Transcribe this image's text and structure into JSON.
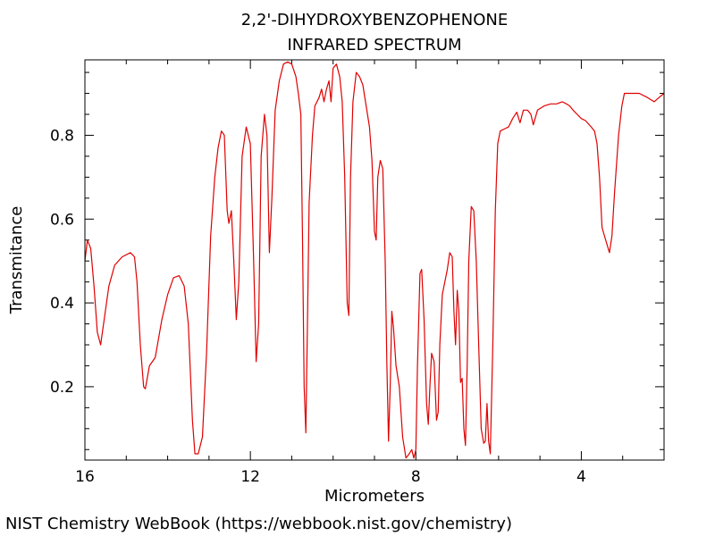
{
  "chart_data": {
    "type": "line",
    "title": [
      "2,2'-DIHYDROXYBENZOPHENONE",
      "INFRARED SPECTRUM"
    ],
    "xlabel": "Micrometers",
    "ylabel": "Transmitance",
    "xlim": [
      16,
      2
    ],
    "ylim": [
      0.025,
      0.98
    ],
    "grid": false,
    "xticks": [
      {
        "value": 16,
        "label": "16"
      },
      {
        "value": 12,
        "label": "12"
      },
      {
        "value": 8,
        "label": "8"
      },
      {
        "value": 4,
        "label": "4"
      }
    ],
    "yticks": [
      {
        "value": 0.2,
        "label": "0.2"
      },
      {
        "value": 0.4,
        "label": "0.4"
      },
      {
        "value": 0.6,
        "label": "0.6"
      },
      {
        "value": 0.8,
        "label": "0.8"
      }
    ],
    "xminor_step": 1,
    "yminor_step": 0.05,
    "series": [
      {
        "color": "#e00000",
        "points": [
          [
            16.0,
            0.5
          ],
          [
            15.94,
            0.55
          ],
          [
            15.86,
            0.53
          ],
          [
            15.78,
            0.44
          ],
          [
            15.7,
            0.33
          ],
          [
            15.62,
            0.3
          ],
          [
            15.52,
            0.37
          ],
          [
            15.42,
            0.44
          ],
          [
            15.28,
            0.49
          ],
          [
            15.1,
            0.51
          ],
          [
            14.9,
            0.52
          ],
          [
            14.8,
            0.51
          ],
          [
            14.74,
            0.45
          ],
          [
            14.66,
            0.3
          ],
          [
            14.58,
            0.2
          ],
          [
            14.54,
            0.195
          ],
          [
            14.44,
            0.25
          ],
          [
            14.3,
            0.27
          ],
          [
            14.14,
            0.36
          ],
          [
            14.0,
            0.42
          ],
          [
            13.86,
            0.46
          ],
          [
            13.72,
            0.465
          ],
          [
            13.6,
            0.44
          ],
          [
            13.5,
            0.35
          ],
          [
            13.4,
            0.12
          ],
          [
            13.34,
            0.04
          ],
          [
            13.26,
            0.04
          ],
          [
            13.16,
            0.08
          ],
          [
            13.06,
            0.28
          ],
          [
            12.96,
            0.56
          ],
          [
            12.86,
            0.7
          ],
          [
            12.78,
            0.77
          ],
          [
            12.7,
            0.81
          ],
          [
            12.63,
            0.8
          ],
          [
            12.56,
            0.62
          ],
          [
            12.52,
            0.59
          ],
          [
            12.46,
            0.62
          ],
          [
            12.4,
            0.5
          ],
          [
            12.34,
            0.36
          ],
          [
            12.28,
            0.45
          ],
          [
            12.2,
            0.75
          ],
          [
            12.1,
            0.82
          ],
          [
            12.0,
            0.78
          ],
          [
            11.92,
            0.5
          ],
          [
            11.86,
            0.26
          ],
          [
            11.8,
            0.35
          ],
          [
            11.74,
            0.75
          ],
          [
            11.66,
            0.85
          ],
          [
            11.6,
            0.8
          ],
          [
            11.54,
            0.52
          ],
          [
            11.48,
            0.65
          ],
          [
            11.4,
            0.86
          ],
          [
            11.3,
            0.93
          ],
          [
            11.2,
            0.97
          ],
          [
            11.1,
            0.975
          ],
          [
            11.0,
            0.97
          ],
          [
            10.9,
            0.94
          ],
          [
            10.84,
            0.9
          ],
          [
            10.78,
            0.85
          ],
          [
            10.74,
            0.55
          ],
          [
            10.7,
            0.2
          ],
          [
            10.66,
            0.09
          ],
          [
            10.62,
            0.35
          ],
          [
            10.58,
            0.64
          ],
          [
            10.5,
            0.8
          ],
          [
            10.44,
            0.87
          ],
          [
            10.34,
            0.89
          ],
          [
            10.28,
            0.91
          ],
          [
            10.22,
            0.88
          ],
          [
            10.16,
            0.91
          ],
          [
            10.1,
            0.93
          ],
          [
            10.05,
            0.88
          ],
          [
            10.0,
            0.96
          ],
          [
            9.92,
            0.97
          ],
          [
            9.84,
            0.94
          ],
          [
            9.78,
            0.88
          ],
          [
            9.72,
            0.7
          ],
          [
            9.66,
            0.4
          ],
          [
            9.62,
            0.37
          ],
          [
            9.58,
            0.7
          ],
          [
            9.52,
            0.88
          ],
          [
            9.44,
            0.95
          ],
          [
            9.36,
            0.94
          ],
          [
            9.28,
            0.92
          ],
          [
            9.2,
            0.87
          ],
          [
            9.12,
            0.82
          ],
          [
            9.06,
            0.74
          ],
          [
            9.0,
            0.57
          ],
          [
            8.96,
            0.55
          ],
          [
            8.92,
            0.7
          ],
          [
            8.86,
            0.74
          ],
          [
            8.8,
            0.72
          ],
          [
            8.74,
            0.5
          ],
          [
            8.7,
            0.25
          ],
          [
            8.66,
            0.07
          ],
          [
            8.62,
            0.2
          ],
          [
            8.58,
            0.38
          ],
          [
            8.54,
            0.34
          ],
          [
            8.48,
            0.25
          ],
          [
            8.4,
            0.2
          ],
          [
            8.32,
            0.08
          ],
          [
            8.24,
            0.03
          ],
          [
            8.16,
            0.04
          ],
          [
            8.1,
            0.05
          ],
          [
            8.05,
            0.03
          ],
          [
            8.0,
            0.05
          ],
          [
            7.96,
            0.25
          ],
          [
            7.9,
            0.47
          ],
          [
            7.86,
            0.48
          ],
          [
            7.8,
            0.36
          ],
          [
            7.74,
            0.16
          ],
          [
            7.7,
            0.11
          ],
          [
            7.66,
            0.2
          ],
          [
            7.62,
            0.28
          ],
          [
            7.56,
            0.26
          ],
          [
            7.5,
            0.12
          ],
          [
            7.46,
            0.14
          ],
          [
            7.42,
            0.3
          ],
          [
            7.36,
            0.42
          ],
          [
            7.3,
            0.45
          ],
          [
            7.24,
            0.48
          ],
          [
            7.18,
            0.52
          ],
          [
            7.12,
            0.51
          ],
          [
            7.08,
            0.38
          ],
          [
            7.04,
            0.3
          ],
          [
            7.0,
            0.43
          ],
          [
            6.96,
            0.38
          ],
          [
            6.92,
            0.21
          ],
          [
            6.88,
            0.22
          ],
          [
            6.84,
            0.1
          ],
          [
            6.8,
            0.06
          ],
          [
            6.76,
            0.25
          ],
          [
            6.72,
            0.5
          ],
          [
            6.66,
            0.63
          ],
          [
            6.6,
            0.62
          ],
          [
            6.54,
            0.5
          ],
          [
            6.48,
            0.3
          ],
          [
            6.42,
            0.1
          ],
          [
            6.36,
            0.065
          ],
          [
            6.32,
            0.07
          ],
          [
            6.28,
            0.16
          ],
          [
            6.24,
            0.07
          ],
          [
            6.2,
            0.04
          ],
          [
            6.14,
            0.3
          ],
          [
            6.08,
            0.62
          ],
          [
            6.02,
            0.78
          ],
          [
            5.96,
            0.81
          ],
          [
            5.86,
            0.815
          ],
          [
            5.76,
            0.82
          ],
          [
            5.66,
            0.84
          ],
          [
            5.56,
            0.855
          ],
          [
            5.48,
            0.83
          ],
          [
            5.4,
            0.86
          ],
          [
            5.3,
            0.86
          ],
          [
            5.22,
            0.85
          ],
          [
            5.16,
            0.825
          ],
          [
            5.06,
            0.86
          ],
          [
            4.9,
            0.87
          ],
          [
            4.74,
            0.875
          ],
          [
            4.6,
            0.875
          ],
          [
            4.46,
            0.88
          ],
          [
            4.36,
            0.875
          ],
          [
            4.28,
            0.87
          ],
          [
            4.2,
            0.86
          ],
          [
            4.1,
            0.85
          ],
          [
            4.0,
            0.84
          ],
          [
            3.9,
            0.835
          ],
          [
            3.76,
            0.82
          ],
          [
            3.68,
            0.81
          ],
          [
            3.62,
            0.78
          ],
          [
            3.56,
            0.7
          ],
          [
            3.5,
            0.58
          ],
          [
            3.44,
            0.56
          ],
          [
            3.38,
            0.54
          ],
          [
            3.32,
            0.52
          ],
          [
            3.26,
            0.56
          ],
          [
            3.2,
            0.66
          ],
          [
            3.1,
            0.8
          ],
          [
            3.02,
            0.87
          ],
          [
            2.96,
            0.9
          ],
          [
            2.8,
            0.9
          ],
          [
            2.6,
            0.9
          ],
          [
            2.4,
            0.89
          ],
          [
            2.24,
            0.88
          ],
          [
            2.12,
            0.89
          ],
          [
            2.0,
            0.9
          ]
        ]
      }
    ]
  },
  "footer": {
    "credit": "NIST Chemistry WebBook (https://webbook.nist.gov/chemistry)"
  }
}
